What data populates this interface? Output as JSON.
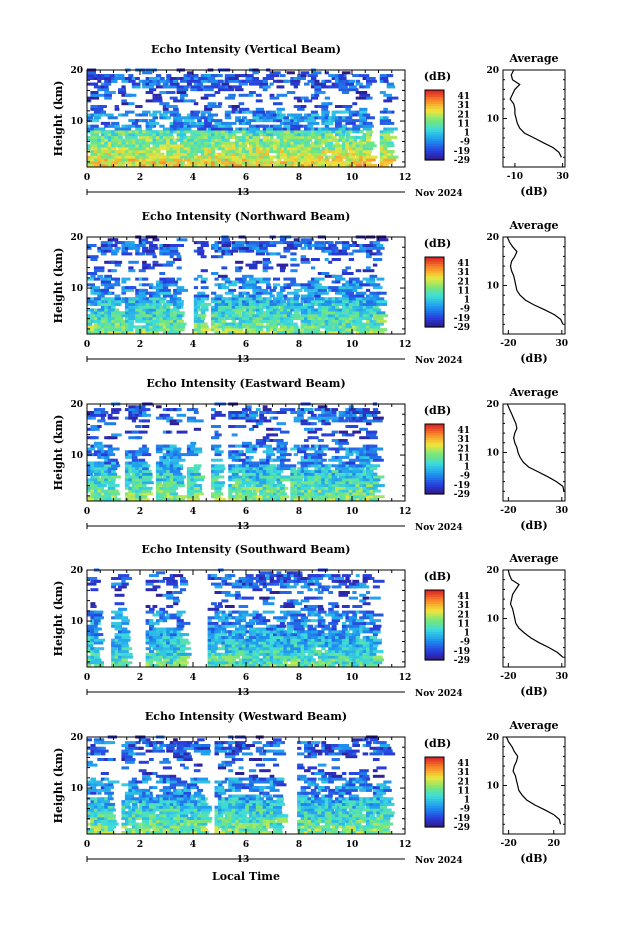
{
  "chart_data": {
    "type": "heatmap",
    "xlabel": "Local Time",
    "date_label": "Nov 2024",
    "day_label": "13",
    "x_range": [
      0,
      12
    ],
    "x_ticks": [
      "0",
      "2",
      "4",
      "6",
      "8",
      "10",
      "12"
    ],
    "y_range": [
      1,
      20
    ],
    "y_ticks": [
      "10",
      "20"
    ],
    "ylabel": "Height (km)",
    "colorbar": {
      "unit": "(dB)",
      "labels": [
        "41",
        "31",
        "21",
        "11",
        "1",
        "-9",
        "-19",
        "-29"
      ],
      "range": [
        -29,
        41
      ]
    },
    "profile": {
      "title": "Average",
      "xlabel": "(dB)"
    },
    "panels": [
      {
        "title": "Echo Intensity (Vertical Beam)",
        "profile_ticks": [
          "-10",
          "30"
        ],
        "profile_xlim": [
          -20,
          32
        ],
        "profile": [
          [
            2,
            29
          ],
          [
            3,
            27
          ],
          [
            4,
            22
          ],
          [
            5,
            14
          ],
          [
            6,
            6
          ],
          [
            7,
            -2
          ],
          [
            8,
            -6
          ],
          [
            9,
            -8
          ],
          [
            10,
            -9
          ],
          [
            11,
            -10
          ],
          [
            12,
            -10
          ],
          [
            13,
            -11
          ],
          [
            14,
            -14
          ],
          [
            15,
            -12
          ],
          [
            16,
            -10
          ],
          [
            17,
            -6
          ],
          [
            18,
            -12
          ],
          [
            19,
            -13
          ],
          [
            20,
            -11
          ]
        ]
      },
      {
        "title": "Echo Intensity (Northward Beam)",
        "profile_ticks": [
          "-20",
          "30"
        ],
        "profile_xlim": [
          -25,
          33
        ],
        "profile": [
          [
            2,
            31
          ],
          [
            3,
            29
          ],
          [
            4,
            23
          ],
          [
            5,
            14
          ],
          [
            6,
            4
          ],
          [
            7,
            -4
          ],
          [
            8,
            -9
          ],
          [
            9,
            -12
          ],
          [
            10,
            -13
          ],
          [
            11,
            -14
          ],
          [
            12,
            -15
          ],
          [
            13,
            -17
          ],
          [
            14,
            -18
          ],
          [
            15,
            -17
          ],
          [
            16,
            -14
          ],
          [
            17,
            -12
          ],
          [
            18,
            -16
          ],
          [
            19,
            -19
          ],
          [
            20,
            -21
          ]
        ]
      },
      {
        "title": "Echo Intensity (Eastward Beam)",
        "profile_ticks": [
          "-20",
          "30"
        ],
        "profile_xlim": [
          -25,
          33
        ],
        "profile": [
          [
            2,
            32
          ],
          [
            3,
            31
          ],
          [
            4,
            25
          ],
          [
            5,
            17
          ],
          [
            6,
            8
          ],
          [
            7,
            -1
          ],
          [
            8,
            -6
          ],
          [
            9,
            -9
          ],
          [
            10,
            -11
          ],
          [
            11,
            -12
          ],
          [
            12,
            -14
          ],
          [
            13,
            -15
          ],
          [
            14,
            -14
          ],
          [
            15,
            -12
          ],
          [
            16,
            -13
          ],
          [
            17,
            -15
          ],
          [
            18,
            -17
          ],
          [
            19,
            -19
          ],
          [
            20,
            -21
          ]
        ]
      },
      {
        "title": "Echo Intensity (Southward Beam)",
        "profile_ticks": [
          "-20",
          "30"
        ],
        "profile_xlim": [
          -25,
          33
        ],
        "profile": [
          [
            2,
            31
          ],
          [
            3,
            26
          ],
          [
            4,
            18
          ],
          [
            5,
            9
          ],
          [
            6,
            1
          ],
          [
            7,
            -5
          ],
          [
            8,
            -10
          ],
          [
            9,
            -13
          ],
          [
            10,
            -14
          ],
          [
            11,
            -15
          ],
          [
            12,
            -16
          ],
          [
            13,
            -18
          ],
          [
            14,
            -17
          ],
          [
            15,
            -16
          ],
          [
            16,
            -13
          ],
          [
            17,
            -10
          ],
          [
            18,
            -17
          ],
          [
            19,
            -19
          ],
          [
            20,
            -20
          ]
        ]
      },
      {
        "title": "Echo Intensity (Westward Beam)",
        "profile_ticks": [
          "-20",
          "20"
        ],
        "profile_xlim": [
          -25,
          30
        ],
        "profile": [
          [
            2,
            26
          ],
          [
            3,
            25
          ],
          [
            4,
            20
          ],
          [
            5,
            12
          ],
          [
            6,
            3
          ],
          [
            7,
            -4
          ],
          [
            8,
            -8
          ],
          [
            9,
            -11
          ],
          [
            10,
            -12
          ],
          [
            11,
            -13
          ],
          [
            12,
            -14
          ],
          [
            13,
            -16
          ],
          [
            14,
            -15
          ],
          [
            15,
            -13
          ],
          [
            16,
            -12
          ],
          [
            17,
            -15
          ],
          [
            18,
            -17
          ],
          [
            19,
            -20
          ],
          [
            20,
            -22
          ]
        ]
      }
    ]
  }
}
